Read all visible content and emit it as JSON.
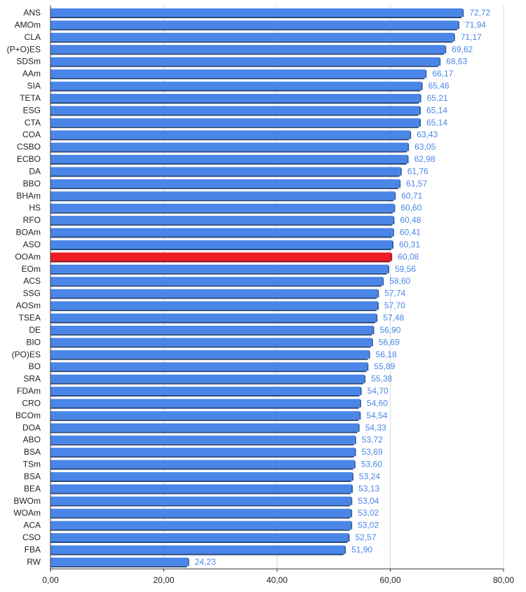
{
  "chart_data": {
    "type": "bar",
    "orientation": "horizontal",
    "title": "",
    "xlabel": "",
    "ylabel": "",
    "xlim": [
      0,
      80
    ],
    "x_ticks": [
      "0,00",
      "20,00",
      "40,00",
      "60,00",
      "80,00"
    ],
    "grid": "vertical",
    "colors": {
      "bar": "#4a86e8",
      "highlight": "#ee1c25"
    },
    "highlight_category": "OOAm",
    "categories": [
      "ANS",
      "AMOm",
      "CLA",
      "(P+O)ES",
      "SDSm",
      "AAm",
      "SIA",
      "TETA",
      "ESG",
      "CTA",
      "COA",
      "CSBO",
      "ECBO",
      "DA",
      "BBO",
      "BHAm",
      "HS",
      "RFO",
      "BOAm",
      "ASO",
      "OOAm",
      "EOm",
      "ACS",
      "SSG",
      "AOSm",
      "TSEA",
      "DE",
      "BIO",
      "(PO)ES",
      "BO",
      "SRA",
      "FDAm",
      "CRO",
      "BCOm",
      "DOA",
      "ABO",
      "BSA",
      "TSm",
      "BSA",
      "BEA",
      "BWOm",
      "WOAm",
      "ACA",
      "CSO",
      "FBA",
      "RW"
    ],
    "values": [
      72.72,
      71.94,
      71.17,
      69.62,
      68.63,
      66.17,
      65.46,
      65.21,
      65.14,
      65.14,
      63.43,
      63.05,
      62.98,
      61.76,
      61.57,
      60.71,
      60.6,
      60.48,
      60.41,
      60.31,
      60.08,
      59.56,
      58.6,
      57.74,
      57.7,
      57.48,
      56.9,
      56.69,
      56.18,
      55.89,
      55.38,
      54.7,
      54.6,
      54.54,
      54.33,
      53.72,
      53.69,
      53.6,
      53.24,
      53.13,
      53.04,
      53.02,
      53.02,
      52.57,
      51.9,
      24.23
    ],
    "value_labels": [
      "72,72",
      "71,94",
      "71,17",
      "69,62",
      "68,63",
      "66,17",
      "65,46",
      "65,21",
      "65,14",
      "65,14",
      "63,43",
      "63,05",
      "62,98",
      "61,76",
      "61,57",
      "60,71",
      "60,60",
      "60,48",
      "60,41",
      "60,31",
      "60,08",
      "59,56",
      "58,60",
      "57,74",
      "57,70",
      "57,48",
      "56,90",
      "56,69",
      "56,18",
      "55,89",
      "55,38",
      "54,70",
      "54,60",
      "54,54",
      "54,33",
      "53,72",
      "53,69",
      "53,60",
      "53,24",
      "53,13",
      "53,04",
      "53,02",
      "53,02",
      "52,57",
      "51,90",
      "24,23"
    ]
  }
}
